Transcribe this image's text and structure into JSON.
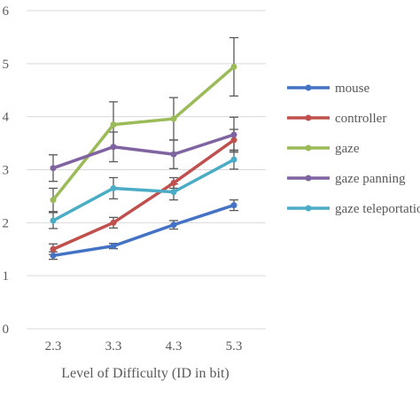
{
  "chart_data": {
    "type": "line",
    "title": "",
    "xlabel": "Level of Difficulty (ID in bit)",
    "ylabel": "",
    "categories": [
      "2.3",
      "3.3",
      "4.3",
      "5.3"
    ],
    "ylim": [
      0,
      6
    ],
    "yticks": [
      "0",
      "1",
      "2",
      "3",
      "4",
      "5",
      "6"
    ],
    "grid": true,
    "legend_position": "right",
    "series": [
      {
        "name": "mouse",
        "color": "#4472C4",
        "values": [
          1.38,
          1.56,
          1.96,
          2.33
        ],
        "errors": [
          0.07,
          0.05,
          0.08,
          0.1
        ]
      },
      {
        "name": "controller",
        "color": "#C0504D",
        "values": [
          1.5,
          2.0,
          2.75,
          3.56
        ],
        "errors": [
          0.1,
          0.1,
          0.1,
          0.2
        ]
      },
      {
        "name": "gaze",
        "color": "#9BBB59",
        "values": [
          2.43,
          3.85,
          3.96,
          4.94
        ],
        "errors": [
          0.22,
          0.43,
          0.4,
          0.55
        ]
      },
      {
        "name": "gaze panning",
        "color": "#8064A2",
        "values": [
          3.03,
          3.43,
          3.29,
          3.66
        ],
        "errors": [
          0.25,
          0.28,
          0.27,
          0.33
        ]
      },
      {
        "name": "gaze teleportation",
        "color": "#4BACC6",
        "values": [
          2.04,
          2.65,
          2.58,
          3.19
        ],
        "errors": [
          0.15,
          0.2,
          0.15,
          0.18
        ]
      }
    ]
  }
}
